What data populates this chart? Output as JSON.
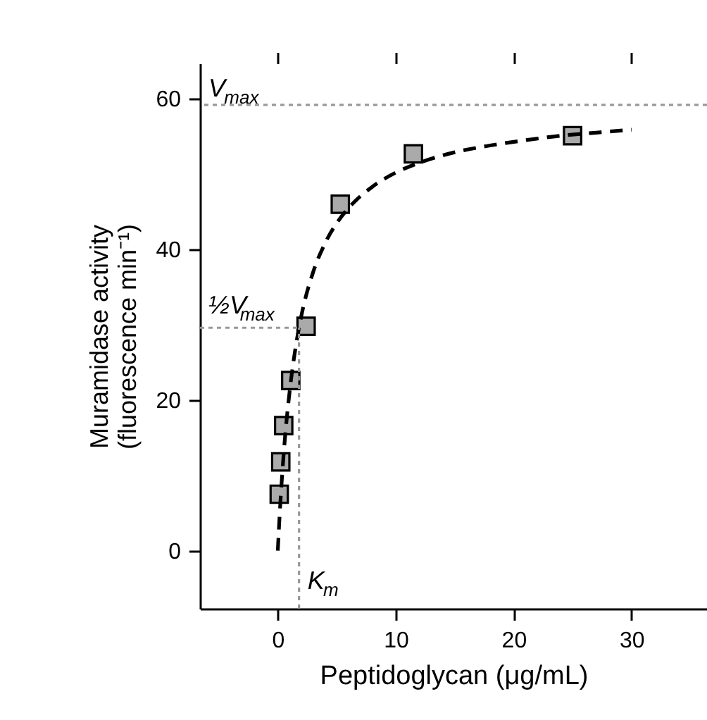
{
  "chart_data": {
    "type": "scatter",
    "xlabel": "Peptidoglycan (μg/mL)",
    "ylabel": "Muramidase activity\n(fluorescence min⁻¹)",
    "xlim": [
      -6.6,
      36.4
    ],
    "xticks": [
      0,
      10,
      20,
      30
    ],
    "ylim": [
      -7.7,
      64.7
    ],
    "yticks": [
      0,
      20,
      40,
      60
    ],
    "grid": false,
    "series": [
      {
        "type": "scatter",
        "marker": "square",
        "color": "#aaaaaa",
        "x": [
          0.12,
          0.25,
          0.5,
          1.1,
          2.4,
          5.3,
          11.5,
          25
        ],
        "values": [
          7.5,
          11.8,
          16.6,
          22.6,
          29.8,
          46.0,
          52.7,
          55.1
        ]
      },
      {
        "type": "line",
        "color": "#000000",
        "line_style": "dashed",
        "x": [
          0,
          0.1,
          0.25,
          0.5,
          1,
          1.5,
          2,
          3,
          4,
          5,
          6,
          8,
          10,
          12,
          15,
          18,
          21,
          24,
          27,
          30
        ],
        "values": [
          0,
          3.1,
          7.2,
          12.9,
          21.1,
          26.9,
          31.2,
          37,
          40.8,
          43.5,
          45.5,
          48.3,
          50.2,
          51.5,
          52.9,
          53.8,
          54.5,
          55.1,
          55.5,
          55.9
        ]
      },
      {
        "type": "line",
        "color": "#999999",
        "line_style": "dotted",
        "x": [
          -6.6,
          1.8
        ],
        "values": [
          29.6,
          29.6
        ]
      },
      {
        "type": "line",
        "color": "#999999",
        "line_style": "dotted",
        "x": [
          1.8,
          1.8
        ],
        "values": [
          -7.7,
          29.6
        ]
      }
    ],
    "ref_lines": [
      {
        "axis": "y",
        "value": 59.2,
        "label": "V$_{max}$",
        "color": "#999999",
        "line_style": "dotted"
      }
    ],
    "annotations": [
      {
        "text": "½V$_{max}$",
        "x": -6.6,
        "y": 29.6
      },
      {
        "text": "K$_{m}$",
        "x": 1.8,
        "y": -7.7
      }
    ]
  }
}
